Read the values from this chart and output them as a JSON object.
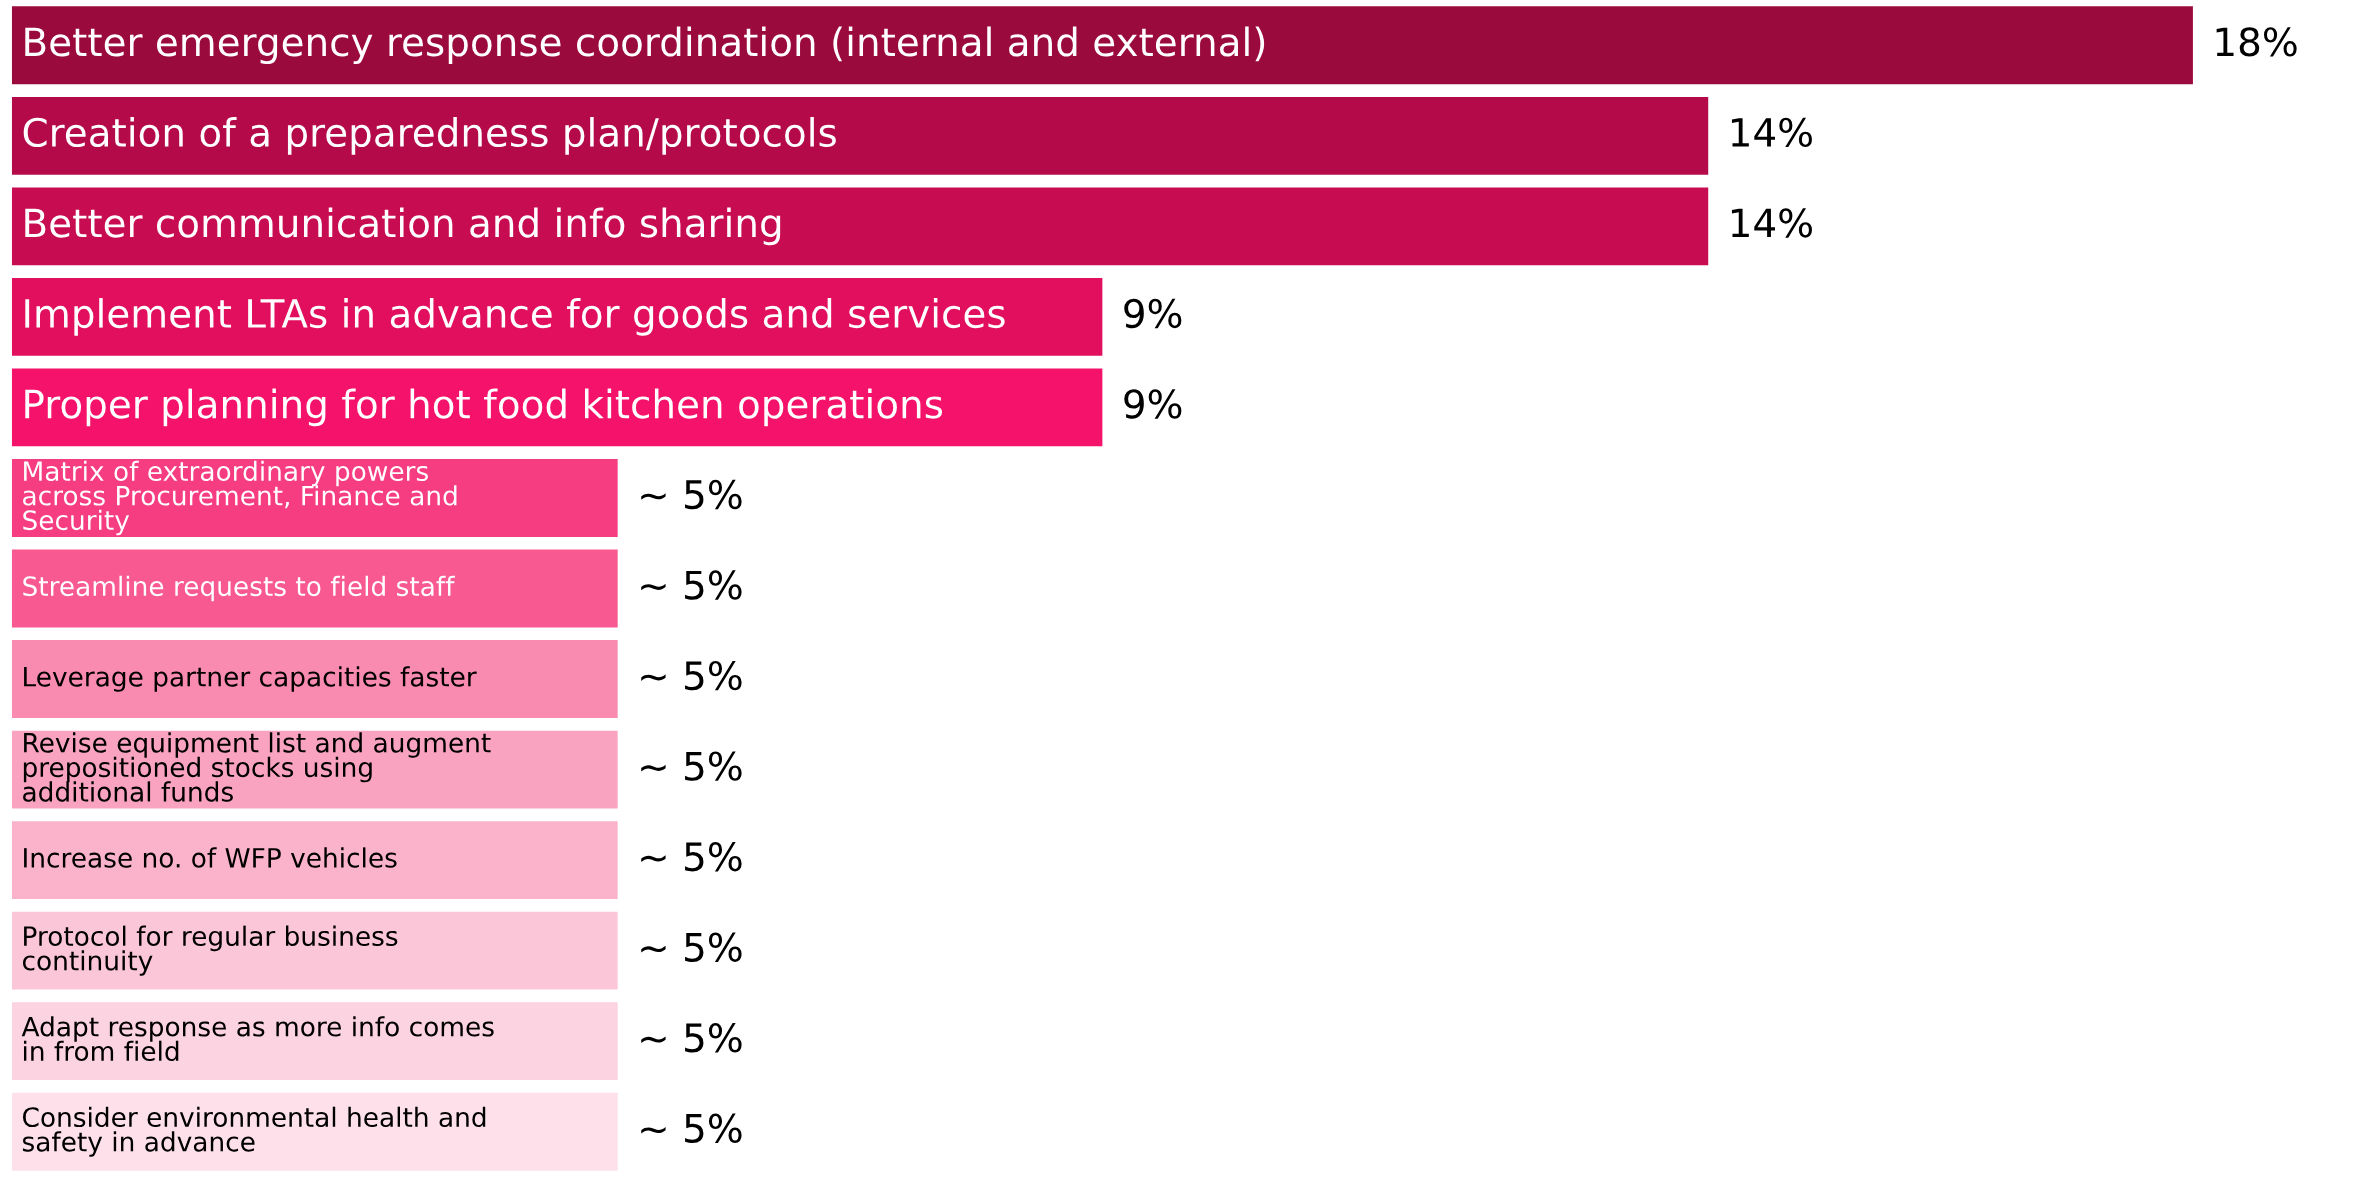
{
  "chart_data": {
    "type": "bar",
    "orientation": "horizontal",
    "categories": [
      "Better emergency response coordination (internal and external)",
      "Creation of a preparedness plan/protocols",
      "Better communication and info sharing",
      "Implement LTAs in advance for goods and services",
      "Proper planning for hot food kitchen operations",
      "Matrix of extraordinary powers across Procurement, Finance and Security",
      "Streamline requests to field staff",
      "Leverage partner capacities faster",
      "Revise equipment list and augment prepositioned stocks using additional funds",
      "Increase no. of WFP vehicles",
      "Protocol for regular business continuity",
      "Adapt response as more info comes in from field",
      "Consider environmental health and safety in advance"
    ],
    "values": [
      18,
      14,
      14,
      9,
      9,
      5,
      5,
      5,
      5,
      5,
      5,
      5,
      5
    ],
    "value_labels": [
      "18%",
      "14%",
      "14%",
      "9%",
      "9%",
      "~ 5%",
      "~ 5%",
      "~ 5%",
      "~ 5%",
      "~ 5%",
      "~ 5%",
      "~ 5%",
      "~ 5%"
    ],
    "colors": [
      "#9b0a3c",
      "#b50a4a",
      "#c80c52",
      "#e20f5e",
      "#f5126a",
      "#f73d82",
      "#f75990",
      "#f98ab0",
      "#f9a3c1",
      "#fab3cb",
      "#fbc6d7",
      "#fcd3e0",
      "#fde0ea"
    ],
    "data_labels": false
  }
}
